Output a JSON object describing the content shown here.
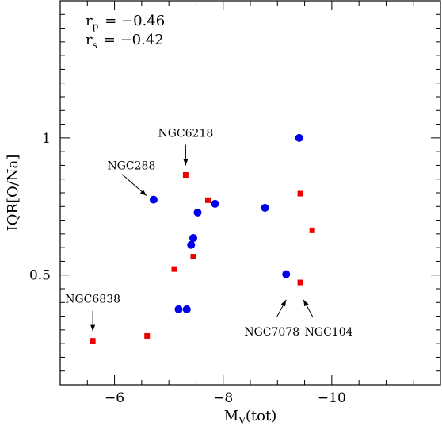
{
  "chart_data": {
    "type": "scatter",
    "xlabel_main": "M",
    "xlabel_sub": "V",
    "xlabel_rest": "(tot)",
    "ylabel": "IQR[O/Na]",
    "xlim": [
      -5,
      -12
    ],
    "ylim": [
      0.1,
      1.5
    ],
    "x_ticks": [
      -6,
      -8,
      -10
    ],
    "x_tick_labels": [
      "−6",
      "−8",
      "−10"
    ],
    "y_ticks": [
      0.5,
      1.0
    ],
    "y_tick_labels": [
      "0.5",
      "1"
    ],
    "grid": false,
    "stats": [
      {
        "sym": "r",
        "sub": "p",
        "value": "= −0.46"
      },
      {
        "sym": "r",
        "sub": "s",
        "value": "= −0.42"
      }
    ],
    "series": [
      {
        "marker": "circle",
        "color": "#0000ee",
        "points": [
          {
            "x": -9.4,
            "y": 1.0
          },
          {
            "x": -6.72,
            "y": 0.775
          },
          {
            "x": -7.53,
            "y": 0.728
          },
          {
            "x": -7.85,
            "y": 0.76
          },
          {
            "x": -8.77,
            "y": 0.745
          },
          {
            "x": -7.45,
            "y": 0.635
          },
          {
            "x": -7.41,
            "y": 0.61
          },
          {
            "x": -9.16,
            "y": 0.503
          },
          {
            "x": -7.18,
            "y": 0.375
          },
          {
            "x": -7.33,
            "y": 0.375
          }
        ]
      },
      {
        "marker": "square",
        "color": "#ee0000",
        "points": [
          {
            "x": -7.31,
            "y": 0.865
          },
          {
            "x": -7.72,
            "y": 0.773
          },
          {
            "x": -9.42,
            "y": 0.797
          },
          {
            "x": -9.64,
            "y": 0.663
          },
          {
            "x": -7.45,
            "y": 0.567
          },
          {
            "x": -7.1,
            "y": 0.522
          },
          {
            "x": -9.42,
            "y": 0.473
          },
          {
            "x": -5.6,
            "y": 0.26
          },
          {
            "x": -6.6,
            "y": 0.278
          }
        ]
      }
    ],
    "annotations": [
      {
        "text": "NGC6218",
        "target": {
          "x": -7.31,
          "y": 0.865
        },
        "pos": "above"
      },
      {
        "text": "NGC288",
        "target": {
          "x": -6.72,
          "y": 0.775
        },
        "pos": "upper-left"
      },
      {
        "text": "NGC6838",
        "target": {
          "x": -5.6,
          "y": 0.26
        },
        "pos": "above"
      },
      {
        "text": "NGC7078",
        "target": {
          "x": -9.16,
          "y": 0.41
        },
        "pos": "lower-left"
      },
      {
        "text": "NGC104",
        "target": {
          "x": -9.42,
          "y": 0.41
        },
        "pos": "lower-right"
      }
    ]
  }
}
